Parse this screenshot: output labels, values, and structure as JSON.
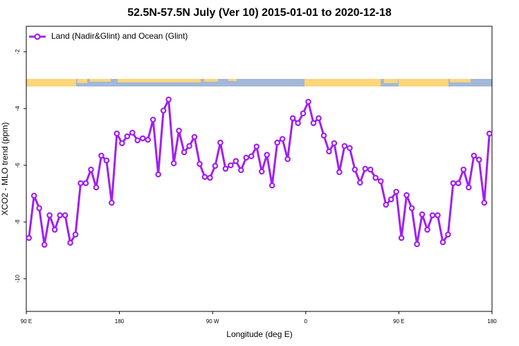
{
  "chart_data": {
    "type": "line",
    "title": "52.5N-57.5N July (Ver 10)   2015-01-01 to 2020-12-18",
    "x_label": "Longitude (deg E)",
    "y_label": "XCO2 - MLO trend (ppm)",
    "xlim": [
      90,
      540
    ],
    "ylim": [
      -11.15,
      -1.1
    ],
    "xticks": [
      {
        "value": 90,
        "label": "90 E"
      },
      180,
      {
        "value": 270,
        "label": "90 W"
      },
      {
        "value": 360,
        "label": "0"
      },
      {
        "value": 450,
        "label": "90 E"
      },
      {
        "value": 540,
        "label": "180"
      }
    ],
    "yticks": [
      -2,
      -4,
      -6,
      -8,
      -10
    ],
    "legend": "top-left",
    "x": [
      92.5,
      97.5,
      102.5,
      107.5,
      112.5,
      117.5,
      122.5,
      127.5,
      132.5,
      137.5,
      142.5,
      147.5,
      152.5,
      157.5,
      162.5,
      167.5,
      172.5,
      177.5,
      182.5,
      187.5,
      192.5,
      197.5,
      202.5,
      207.5,
      212.5,
      217.5,
      222.5,
      227.5,
      232.5,
      237.5,
      242.5,
      247.5,
      252.5,
      257.5,
      262.5,
      267.5,
      272.5,
      277.5,
      282.5,
      287.5,
      292.5,
      297.5,
      302.5,
      307.5,
      312.5,
      317.5,
      322.5,
      327.5,
      332.5,
      337.5,
      342.5,
      347.5,
      352.5,
      357.5,
      362.5,
      367.5,
      372.5,
      377.5,
      382.5,
      387.5,
      392.5,
      397.5,
      402.5,
      407.5,
      412.5,
      417.5,
      422.5,
      427.5,
      432.5,
      437.5,
      442.5,
      447.5,
      452.5,
      457.5,
      462.5,
      467.5,
      472.5,
      477.5,
      482.5,
      487.5,
      492.5,
      497.5,
      502.5,
      507.5,
      512.5,
      517.5,
      522.5,
      527.5,
      532.5,
      537.5
    ],
    "series": [
      {
        "name": "Land (Nadir&Glint) and Ocean (Glint)",
        "color": "#a020f0",
        "values": [
          -8.56,
          -7.07,
          -7.51,
          -8.8,
          -7.76,
          -8.27,
          -7.76,
          -7.76,
          -8.73,
          -8.44,
          -6.63,
          -6.63,
          -6.15,
          -6.78,
          -5.66,
          -5.83,
          -7.32,
          -4.88,
          -5.22,
          -4.98,
          -4.85,
          -5.12,
          -5.05,
          -5.1,
          -4.39,
          -6.32,
          -4.07,
          -3.68,
          -5.93,
          -4.78,
          -5.54,
          -5.32,
          -5.0,
          -5.95,
          -6.41,
          -6.44,
          -6.02,
          -5.2,
          -6.12,
          -6.0,
          -5.85,
          -6.17,
          -5.73,
          -5.68,
          -5.34,
          -6.22,
          -5.63,
          -6.71,
          -5.2,
          -5.07,
          -5.78,
          -4.34,
          -4.51,
          -4.17,
          -3.76,
          -4.51,
          -4.34,
          -4.95,
          -5.51,
          -5.22,
          -6.24,
          -5.32,
          -5.39,
          -6.15,
          -6.61,
          -6.12,
          -6.15,
          -6.44,
          -6.56,
          -7.39,
          -7.2,
          -6.93,
          -8.56,
          -7.05,
          -7.51,
          -8.78,
          -7.73,
          -8.27,
          -7.76,
          -7.76,
          -8.71,
          -8.44,
          -6.63,
          -6.63,
          -6.15,
          -6.78,
          -5.66,
          -5.8,
          -7.32,
          -4.88
        ]
      }
    ]
  }
}
